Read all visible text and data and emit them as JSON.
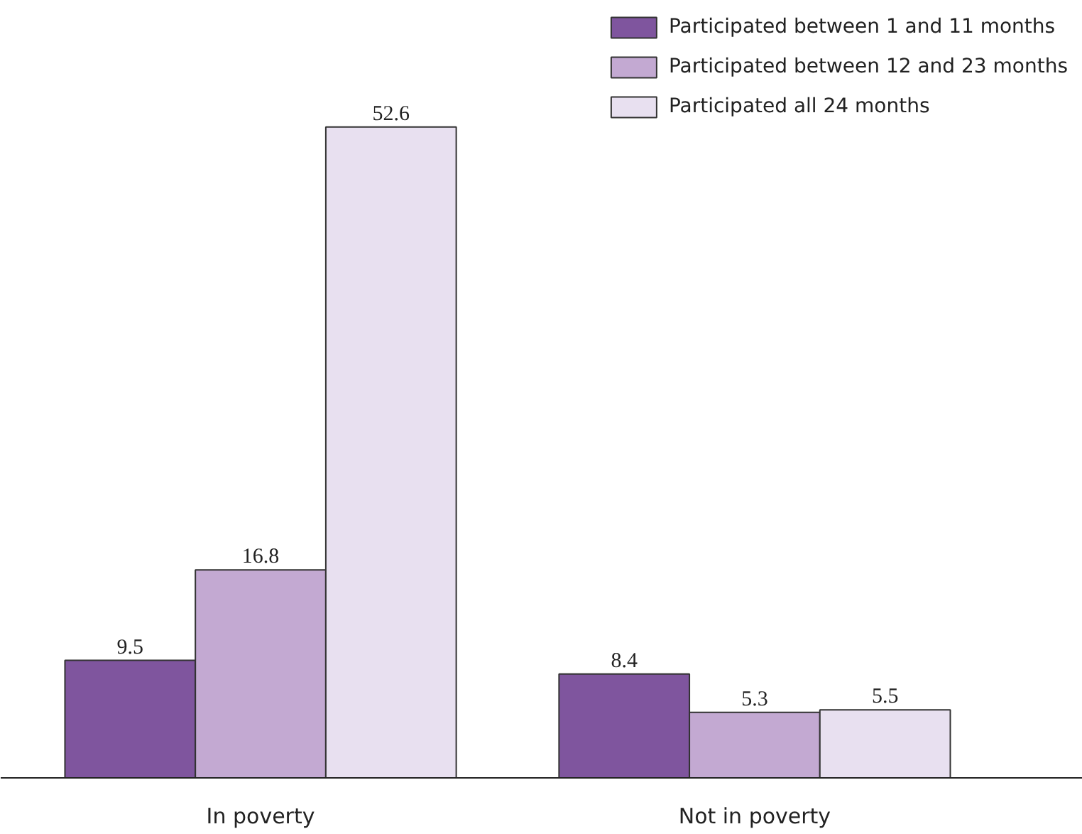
{
  "chart_data": {
    "type": "bar",
    "categories": [
      "In poverty",
      "Not in poverty"
    ],
    "series": [
      {
        "name": "Participated between 1 and 11 months",
        "color": "#7f559e",
        "values": [
          9.5,
          8.4
        ]
      },
      {
        "name": "Participated between 12 and 23 months",
        "color": "#c3a9d2",
        "values": [
          16.8,
          5.3
        ]
      },
      {
        "name": "Participated all 24 months",
        "color": "#e8e0f0",
        "values": [
          52.6,
          5.5
        ]
      }
    ],
    "relative": false,
    "data_labels": true,
    "grid": false,
    "legend": "top right"
  }
}
